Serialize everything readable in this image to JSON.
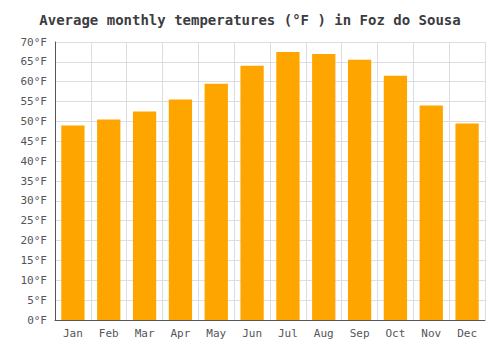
{
  "chart_data": {
    "type": "bar",
    "title": "Average monthly temperatures (°F ) in Foz do Sousa",
    "categories": [
      "Jan",
      "Feb",
      "Mar",
      "Apr",
      "May",
      "Jun",
      "Jul",
      "Aug",
      "Sep",
      "Oct",
      "Nov",
      "Dec"
    ],
    "values": [
      49,
      50.5,
      52.5,
      55.5,
      59.5,
      64,
      67.5,
      67,
      65.5,
      61.5,
      54,
      49.5
    ],
    "color": "#FFA500",
    "ylim": [
      0,
      70
    ],
    "yticks": [
      {
        "value": 0,
        "label": "0°F"
      },
      {
        "value": 5,
        "label": "5°F"
      },
      {
        "value": 10,
        "label": "10°F"
      },
      {
        "value": 15,
        "label": "15°F"
      },
      {
        "value": 20,
        "label": "20°F"
      },
      {
        "value": 25,
        "label": "25°F"
      },
      {
        "value": 30,
        "label": "30°F"
      },
      {
        "value": 35,
        "label": "35°F"
      },
      {
        "value": 40,
        "label": "40°F"
      },
      {
        "value": 45,
        "label": "45°F"
      },
      {
        "value": 50,
        "label": "50°F"
      },
      {
        "value": 55,
        "label": "55°F"
      },
      {
        "value": 60,
        "label": "60°F"
      },
      {
        "value": 65,
        "label": "65°F"
      },
      {
        "value": 70,
        "label": "70°F"
      }
    ],
    "grid": true
  }
}
